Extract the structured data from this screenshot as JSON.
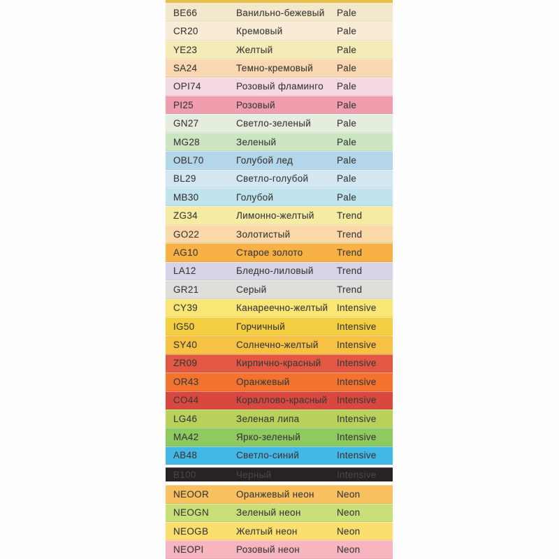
{
  "canvas": {
    "background": "#FFFFFF"
  },
  "palette_table": {
    "column_keys": [
      "code",
      "name",
      "category"
    ],
    "default_text_color": "#3A3A3A",
    "top_partial_strip": {
      "name": "partial-strip-top-edge",
      "color": "#E6BE4E"
    },
    "categories": [
      "Pale",
      "Trend",
      "Intensive",
      "Neon"
    ],
    "rows": [
      {
        "code": "BE66",
        "name": "Ванильно-бежевый",
        "category": "Pale",
        "color": "#F2E8CC"
      },
      {
        "code": "CR20",
        "name": "Кремовый",
        "category": "Pale",
        "color": "#F9ECD7"
      },
      {
        "code": "YE23",
        "name": "Желтый",
        "category": "Pale",
        "color": "#F5EBB7"
      },
      {
        "code": "SA24",
        "name": "Темно-кремовый",
        "category": "Pale",
        "color": "#F8D7B1"
      },
      {
        "code": "OPI74",
        "name": "Розовый фламинго",
        "category": "Pale",
        "color": "#F5D9E0"
      },
      {
        "code": "PI25",
        "name": "Розовый",
        "category": "Pale",
        "color": "#F09DAE"
      },
      {
        "code": "GN27",
        "name": "Светло-зеленый",
        "category": "Pale",
        "color": "#E5EDDF"
      },
      {
        "code": "MG28",
        "name": "Зеленый",
        "category": "Pale",
        "color": "#CCE5C3"
      },
      {
        "code": "OBL70",
        "name": "Голубой лед",
        "category": "Pale",
        "color": "#B4D6EA"
      },
      {
        "code": "BL29",
        "name": "Светло-голубой",
        "category": "Pale",
        "color": "#D3E7F2"
      },
      {
        "code": "MB30",
        "name": "Голубой",
        "category": "Pale",
        "color": "#C0E4ED"
      },
      {
        "code": "ZG34",
        "name": "Лимонно-желтый",
        "category": "Trend",
        "color": "#F6EBA3"
      },
      {
        "code": "GO22",
        "name": "Золотистый",
        "category": "Trend",
        "color": "#FAD8A8"
      },
      {
        "code": "AG10",
        "name": "Старое золото",
        "category": "Trend",
        "color": "#F8B144"
      },
      {
        "code": "LA12",
        "name": "Бледно-лиловый",
        "category": "Trend",
        "color": "#D8D4E8"
      },
      {
        "code": "GR21",
        "name": "Серый",
        "category": "Trend",
        "color": "#DEDEDA"
      },
      {
        "code": "CY39",
        "name": "Канареечно-желтый",
        "category": "Intensive",
        "color": "#F9E674"
      },
      {
        "code": "IG50",
        "name": "Горчичный",
        "category": "Intensive",
        "color": "#F4CF41"
      },
      {
        "code": "SY40",
        "name": "Солнечно-желтый",
        "category": "Intensive",
        "color": "#F7C243"
      },
      {
        "code": "ZR09",
        "name": "Кирпично-красный",
        "category": "Intensive",
        "color": "#E25842"
      },
      {
        "code": "OR43",
        "name": "Оранжевый",
        "category": "Intensive",
        "color": "#F3732F"
      },
      {
        "code": "CO44",
        "name": "Кораллово-красный",
        "category": "Intensive",
        "color": "#D9483F"
      },
      {
        "code": "LG46",
        "name": "Зеленая липа",
        "category": "Intensive",
        "color": "#B8D15B"
      },
      {
        "code": "MA42",
        "name": "Ярко-зеленый",
        "category": "Intensive",
        "color": "#8ECA5F"
      },
      {
        "code": "AB48",
        "name": "Светло-синий",
        "category": "Intensive",
        "color": "#42B8E6"
      },
      {
        "code": "B100",
        "name": "Черный",
        "category": "Intensive",
        "color": "#272322",
        "text_color": "#4B4745",
        "detached": true
      },
      {
        "code": "NEOOR",
        "name": "Оранжевый неон",
        "category": "Neon",
        "color": "#F8C05E"
      },
      {
        "code": "NEOGN",
        "name": "Зеленый неон",
        "category": "Neon",
        "color": "#C9E079"
      },
      {
        "code": "NEOGB",
        "name": "Желтый неон",
        "category": "Neon",
        "color": "#FADF6E"
      },
      {
        "code": "NEOPI",
        "name": "Розовый неон",
        "category": "Neon",
        "color": "#F7B5C0"
      }
    ]
  }
}
